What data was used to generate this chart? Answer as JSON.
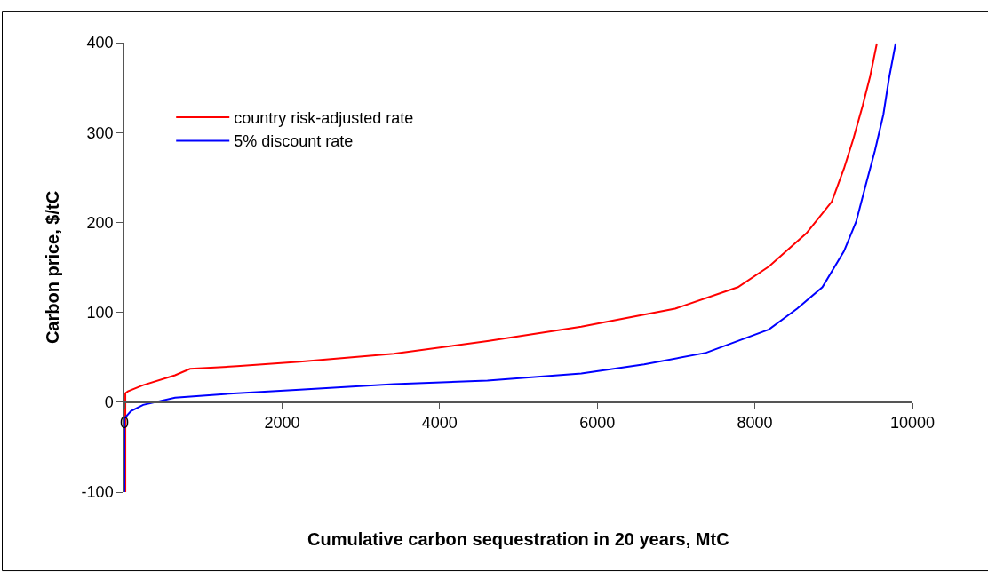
{
  "chart_data": {
    "type": "line",
    "xlabel": "Cumulative carbon sequestration in 20 years, MtC",
    "ylabel": "Carbon price, $/tC",
    "xlim": [
      0,
      10000
    ],
    "xticks": [
      0,
      2000,
      4000,
      6000,
      8000,
      10000
    ],
    "ylim": [
      -100,
      400
    ],
    "yticks": [
      -100,
      0,
      100,
      200,
      300,
      400
    ],
    "legend": "top left",
    "line_style": "solid",
    "marker": "none",
    "series": [
      {
        "name": "country risk-adjusted rate",
        "color": "#ff0000",
        "x": [
          12,
          12,
          44,
          238,
          643,
          833,
          1429,
          2226,
          3417,
          4607,
          5798,
          6988,
          7786,
          8179,
          8655,
          8976,
          9131,
          9250,
          9369,
          9464,
          9548
        ],
        "values": [
          -100,
          10,
          12,
          19,
          30,
          37,
          40,
          45,
          54,
          68,
          84,
          104,
          128,
          151,
          188,
          223,
          260,
          293,
          330,
          363,
          399
        ]
      },
      {
        "name": "5% discount rate",
        "color": "#0000ff",
        "x": [
          0,
          0,
          83,
          238,
          643,
          1429,
          2226,
          3417,
          4607,
          5798,
          6595,
          7381,
          8179,
          8536,
          8857,
          9131,
          9286,
          9405,
          9524,
          9631,
          9702,
          9786
        ],
        "values": [
          -100,
          -18,
          -10,
          -3,
          5,
          10,
          14,
          20,
          24,
          32,
          42,
          55,
          81,
          104,
          128,
          168,
          201,
          241,
          280,
          320,
          360,
          399
        ]
      }
    ]
  }
}
